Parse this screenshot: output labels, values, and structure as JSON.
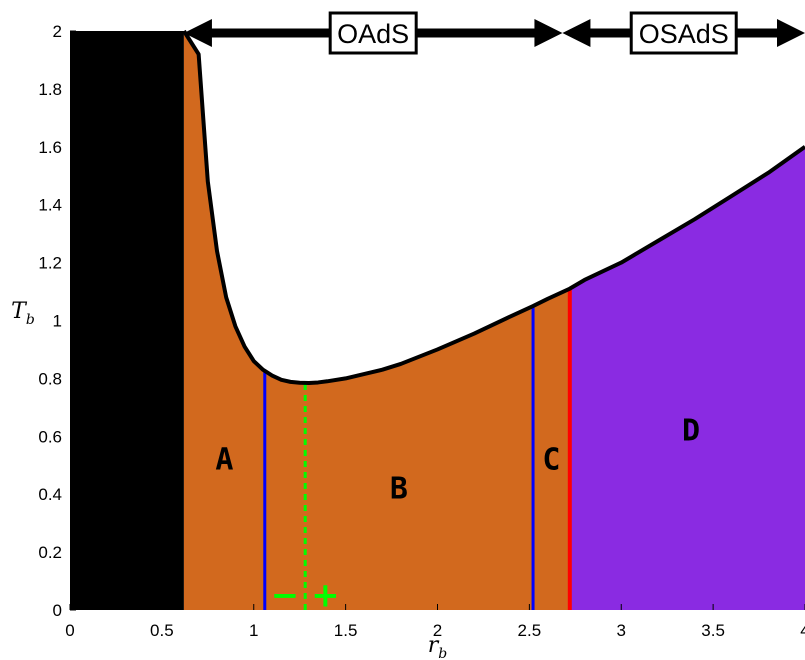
{
  "chart_data": {
    "type": "area",
    "title": "",
    "xlabel": "r",
    "xlabel_sub": "b",
    "ylabel": "T",
    "ylabel_sub": "b",
    "xlim": [
      0,
      4
    ],
    "ylim": [
      0,
      2
    ],
    "x_ticks": [
      {
        "value": 0,
        "label": "0"
      },
      {
        "value": 0.5,
        "label": "0.5"
      },
      {
        "value": 1,
        "label": "1"
      },
      {
        "value": 1.5,
        "label": "1.5"
      },
      {
        "value": 2,
        "label": "2"
      },
      {
        "value": 2.5,
        "label": "2.5"
      },
      {
        "value": 3,
        "label": "3"
      },
      {
        "value": 3.5,
        "label": "3.5"
      },
      {
        "value": 4,
        "label": "4"
      }
    ],
    "y_ticks": [
      {
        "value": 0,
        "label": "0"
      },
      {
        "value": 0.2,
        "label": "0.2"
      },
      {
        "value": 0.4,
        "label": "0.4"
      },
      {
        "value": 0.6,
        "label": "0.6"
      },
      {
        "value": 0.8,
        "label": "0.8"
      },
      {
        "value": 1,
        "label": "1"
      },
      {
        "value": 1.2,
        "label": "1.2"
      },
      {
        "value": 1.4,
        "label": "1.4"
      },
      {
        "value": 1.6,
        "label": "1.6"
      },
      {
        "value": 1.8,
        "label": "1.8"
      },
      {
        "value": 2,
        "label": "2"
      }
    ],
    "grid": false,
    "boundary_curve": {
      "color": "#000000",
      "x": [
        0.62,
        0.7,
        0.75,
        0.8,
        0.85,
        0.9,
        0.95,
        1.0,
        1.05,
        1.1,
        1.15,
        1.2,
        1.25,
        1.3,
        1.35,
        1.4,
        1.5,
        1.6,
        1.7,
        1.8,
        2.0,
        2.2,
        2.4,
        2.52,
        2.6,
        2.72,
        2.8,
        3.0,
        3.2,
        3.4,
        3.6,
        3.8,
        4.0
      ],
      "y": [
        2.0,
        1.92,
        1.48,
        1.24,
        1.08,
        0.98,
        0.91,
        0.86,
        0.83,
        0.81,
        0.795,
        0.788,
        0.785,
        0.784,
        0.786,
        0.79,
        0.8,
        0.815,
        0.83,
        0.85,
        0.9,
        0.955,
        1.015,
        1.05,
        1.075,
        1.11,
        1.14,
        1.2,
        1.275,
        1.35,
        1.43,
        1.51,
        1.6
      ]
    },
    "regions": [
      {
        "label": "",
        "x_from": 0,
        "x_to": 0.62,
        "color": "#000000"
      },
      {
        "label": "A",
        "x_from": 0.62,
        "x_to": 1.06,
        "color": "#d2691e",
        "label_x": 0.84,
        "label_y": 0.52
      },
      {
        "label": "B",
        "x_from": 1.06,
        "x_to": 2.52,
        "color": "#d2691e",
        "label_x": 1.79,
        "label_y": 0.42
      },
      {
        "label": "C",
        "x_from": 2.52,
        "x_to": 2.72,
        "color": "#d2691e",
        "label_x": 2.62,
        "label_y": 0.52
      },
      {
        "label": "D",
        "x_from": 2.72,
        "x_to": 4.0,
        "color": "#8a2be2",
        "label_x": 3.38,
        "label_y": 0.62
      }
    ],
    "vertical_lines": [
      {
        "x": 1.06,
        "color": "#0000ff",
        "style": "solid"
      },
      {
        "x": 1.28,
        "color": "#00ff00",
        "style": "dotted"
      },
      {
        "x": 2.52,
        "color": "#0000ff",
        "style": "solid"
      },
      {
        "x": 2.72,
        "color": "#ff0000",
        "style": "solid"
      }
    ],
    "signs": [
      {
        "text": "−",
        "x": 1.17,
        "y": 0.05,
        "color": "#00ff00"
      },
      {
        "text": "+",
        "x": 1.39,
        "y": 0.05,
        "color": "#00ff00"
      }
    ],
    "banners": [
      {
        "label": "OAdS",
        "x_from": 0.62,
        "x_to": 2.68
      },
      {
        "label": "OSAdS",
        "x_from": 2.68,
        "x_to": 4.0
      }
    ]
  }
}
